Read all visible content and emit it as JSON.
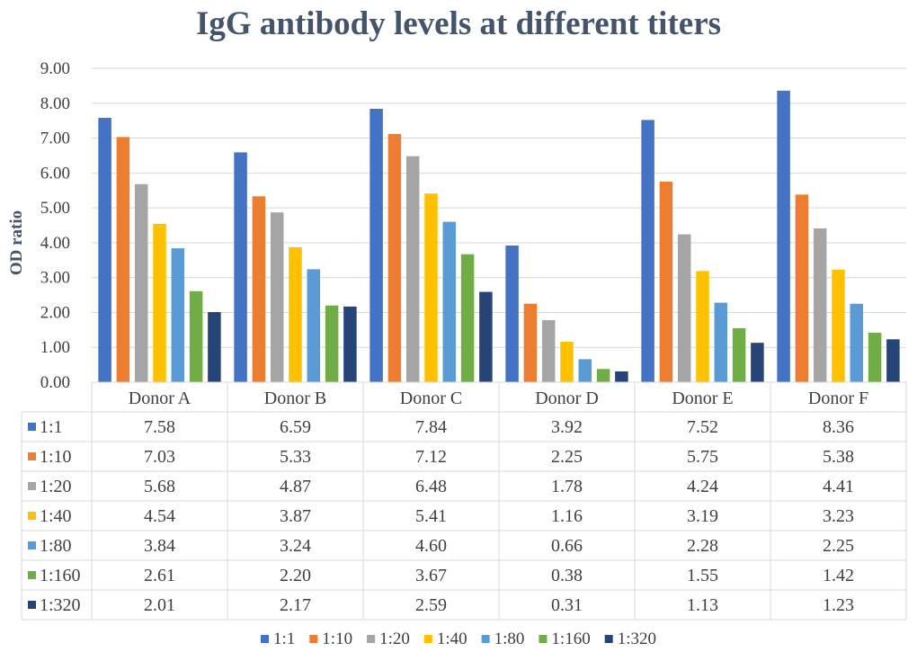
{
  "chart_data": {
    "type": "bar",
    "title": "IgG antibody levels at different titers",
    "xlabel": "",
    "ylabel": "OD ratio",
    "ylim": [
      0,
      9
    ],
    "ytick_labels": [
      "0.00",
      "1.00",
      "2.00",
      "3.00",
      "4.00",
      "5.00",
      "6.00",
      "7.00",
      "8.00",
      "9.00"
    ],
    "grid": true,
    "legend_position": "bottom",
    "categories": [
      "Donor A",
      "Donor B",
      "Donor C",
      "Donor D",
      "Donor E",
      "Donor F"
    ],
    "series": [
      {
        "name": "1:1",
        "color": "#4472c4",
        "values": [
          7.58,
          6.59,
          7.84,
          3.92,
          7.52,
          8.36
        ],
        "labels": [
          "7.58",
          "6.59",
          "7.84",
          "3.92",
          "7.52",
          "8.36"
        ]
      },
      {
        "name": "1:10",
        "color": "#ed7d31",
        "values": [
          7.03,
          5.33,
          7.12,
          2.25,
          5.75,
          5.38
        ],
        "labels": [
          "7.03",
          "5.33",
          "7.12",
          "2.25",
          "5.75",
          "5.38"
        ]
      },
      {
        "name": "1:20",
        "color": "#a5a5a5",
        "values": [
          5.68,
          4.87,
          6.48,
          1.78,
          4.24,
          4.41
        ],
        "labels": [
          "5.68",
          "4.87",
          "6.48",
          "1.78",
          "4.24",
          "4.41"
        ]
      },
      {
        "name": "1:40",
        "color": "#ffc000",
        "values": [
          4.54,
          3.87,
          5.41,
          1.16,
          3.19,
          3.23
        ],
        "labels": [
          "4.54",
          "3.87",
          "5.41",
          "1.16",
          "3.19",
          "3.23"
        ]
      },
      {
        "name": "1:80",
        "color": "#5b9bd5",
        "values": [
          3.84,
          3.24,
          4.6,
          0.66,
          2.28,
          2.25
        ],
        "labels": [
          "3.84",
          "3.24",
          "4.60",
          "0.66",
          "2.28",
          "2.25"
        ]
      },
      {
        "name": "1:160",
        "color": "#70ad47",
        "values": [
          2.61,
          2.2,
          3.67,
          0.38,
          1.55,
          1.42
        ],
        "labels": [
          "2.61",
          "2.20",
          "3.67",
          "0.38",
          "1.55",
          "1.42"
        ]
      },
      {
        "name": "1:320",
        "color": "#264478",
        "values": [
          2.01,
          2.17,
          2.59,
          0.31,
          1.13,
          1.23
        ],
        "labels": [
          "2.01",
          "2.17",
          "2.59",
          "0.31",
          "1.13",
          "1.23"
        ]
      }
    ]
  }
}
